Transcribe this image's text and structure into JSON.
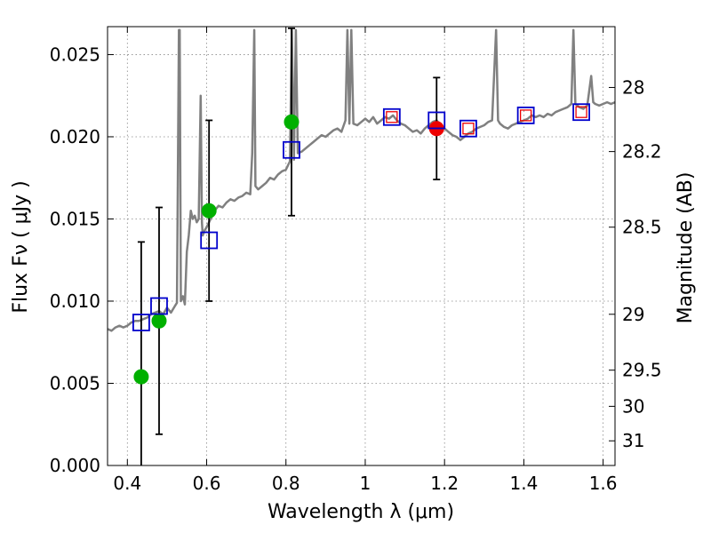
{
  "chart_data": {
    "type": "scatter",
    "title": "",
    "xlabel": "Wavelength  λ (μm)",
    "ylabel": "Flux  Fν  ( μJy )",
    "ylabel_right": "Magnitude (AB)",
    "xlim": [
      0.35,
      1.63
    ],
    "ylim": [
      0.0,
      0.0267
    ],
    "grid": true,
    "x_ticks": [
      0.4,
      0.6,
      0.8,
      1.0,
      1.2,
      1.4,
      1.6
    ],
    "x_tick_labels": [
      "0.4",
      "0.6",
      "0.8",
      "1",
      "1.2",
      "1.4",
      "1.6"
    ],
    "y_ticks": [
      0.0,
      0.005,
      0.01,
      0.015,
      0.02,
      0.025
    ],
    "y_tick_labels": [
      "0.000",
      "0.005",
      "0.010",
      "0.015",
      "0.020",
      "0.025"
    ],
    "right_ticks": [
      {
        "label": "28",
        "flux": 0.023
      },
      {
        "label": "28.2",
        "flux": 0.0191
      },
      {
        "label": "28.5",
        "flux": 0.0145
      },
      {
        "label": "29",
        "flux": 0.0092
      },
      {
        "label": "29.5",
        "flux": 0.0058
      },
      {
        "label": "30",
        "flux": 0.0036
      },
      {
        "label": "31",
        "flux": 0.0015
      }
    ],
    "colors": {
      "spectrum": "#808080",
      "observed": "#00b000",
      "observed_special": "#ee0000",
      "model": "#0000cc",
      "model_inner": "#ee0000",
      "errorbar": "#000000",
      "grid": "#888888"
    },
    "spectrum": [
      [
        0.35,
        0.0083
      ],
      [
        0.36,
        0.0082
      ],
      [
        0.37,
        0.0084
      ],
      [
        0.38,
        0.0085
      ],
      [
        0.39,
        0.0084
      ],
      [
        0.4,
        0.0085
      ],
      [
        0.41,
        0.0087
      ],
      [
        0.42,
        0.0088
      ],
      [
        0.43,
        0.0088
      ],
      [
        0.44,
        0.0089
      ],
      [
        0.45,
        0.009
      ],
      [
        0.46,
        0.0092
      ],
      [
        0.47,
        0.0093
      ],
      [
        0.48,
        0.0094
      ],
      [
        0.49,
        0.0092
      ],
      [
        0.5,
        0.0096
      ],
      [
        0.51,
        0.0093
      ],
      [
        0.52,
        0.0097
      ],
      [
        0.525,
        0.0099
      ],
      [
        0.53,
        0.0265
      ],
      [
        0.532,
        0.0265
      ],
      [
        0.535,
        0.01
      ],
      [
        0.54,
        0.0103
      ],
      [
        0.545,
        0.0098
      ],
      [
        0.55,
        0.013
      ],
      [
        0.555,
        0.014
      ],
      [
        0.56,
        0.0155
      ],
      [
        0.565,
        0.015
      ],
      [
        0.57,
        0.0152
      ],
      [
        0.575,
        0.0148
      ],
      [
        0.58,
        0.015
      ],
      [
        0.585,
        0.0225
      ],
      [
        0.588,
        0.0148
      ],
      [
        0.59,
        0.014
      ],
      [
        0.595,
        0.0143
      ],
      [
        0.6,
        0.0145
      ],
      [
        0.61,
        0.015
      ],
      [
        0.62,
        0.0155
      ],
      [
        0.63,
        0.0158
      ],
      [
        0.64,
        0.0157
      ],
      [
        0.65,
        0.016
      ],
      [
        0.66,
        0.0162
      ],
      [
        0.67,
        0.0161
      ],
      [
        0.68,
        0.0163
      ],
      [
        0.69,
        0.0164
      ],
      [
        0.7,
        0.0166
      ],
      [
        0.71,
        0.0165
      ],
      [
        0.715,
        0.019
      ],
      [
        0.72,
        0.0265
      ],
      [
        0.723,
        0.017
      ],
      [
        0.73,
        0.0168
      ],
      [
        0.74,
        0.017
      ],
      [
        0.75,
        0.0172
      ],
      [
        0.76,
        0.0175
      ],
      [
        0.77,
        0.0174
      ],
      [
        0.78,
        0.0177
      ],
      [
        0.79,
        0.0179
      ],
      [
        0.8,
        0.018
      ],
      [
        0.81,
        0.0185
      ],
      [
        0.815,
        0.0265
      ],
      [
        0.82,
        0.0186
      ],
      [
        0.825,
        0.0265
      ],
      [
        0.83,
        0.019
      ],
      [
        0.84,
        0.0191
      ],
      [
        0.85,
        0.0193
      ],
      [
        0.86,
        0.0195
      ],
      [
        0.87,
        0.0197
      ],
      [
        0.88,
        0.0199
      ],
      [
        0.89,
        0.0201
      ],
      [
        0.9,
        0.02
      ],
      [
        0.91,
        0.0202
      ],
      [
        0.92,
        0.0204
      ],
      [
        0.93,
        0.0205
      ],
      [
        0.94,
        0.0203
      ],
      [
        0.95,
        0.021
      ],
      [
        0.955,
        0.0265
      ],
      [
        0.96,
        0.0208
      ],
      [
        0.965,
        0.0265
      ],
      [
        0.97,
        0.0208
      ],
      [
        0.98,
        0.0207
      ],
      [
        0.99,
        0.0209
      ],
      [
        1.0,
        0.0211
      ],
      [
        1.01,
        0.0209
      ],
      [
        1.02,
        0.0212
      ],
      [
        1.03,
        0.0208
      ],
      [
        1.04,
        0.021
      ],
      [
        1.05,
        0.0212
      ],
      [
        1.06,
        0.0211
      ],
      [
        1.07,
        0.0213
      ],
      [
        1.08,
        0.021
      ],
      [
        1.09,
        0.0208
      ],
      [
        1.1,
        0.0207
      ],
      [
        1.11,
        0.0205
      ],
      [
        1.12,
        0.0203
      ],
      [
        1.13,
        0.0204
      ],
      [
        1.14,
        0.0202
      ],
      [
        1.15,
        0.0205
      ],
      [
        1.16,
        0.0207
      ],
      [
        1.17,
        0.0209
      ],
      [
        1.18,
        0.021
      ],
      [
        1.19,
        0.0207
      ],
      [
        1.2,
        0.0205
      ],
      [
        1.21,
        0.0203
      ],
      [
        1.22,
        0.0201
      ],
      [
        1.23,
        0.02
      ],
      [
        1.24,
        0.0198
      ],
      [
        1.25,
        0.02
      ],
      [
        1.26,
        0.0202
      ],
      [
        1.27,
        0.0203
      ],
      [
        1.28,
        0.0205
      ],
      [
        1.29,
        0.0206
      ],
      [
        1.3,
        0.0207
      ],
      [
        1.31,
        0.0209
      ],
      [
        1.32,
        0.021
      ],
      [
        1.33,
        0.0265
      ],
      [
        1.335,
        0.021
      ],
      [
        1.34,
        0.0208
      ],
      [
        1.35,
        0.0206
      ],
      [
        1.36,
        0.0205
      ],
      [
        1.37,
        0.0207
      ],
      [
        1.38,
        0.0208
      ],
      [
        1.39,
        0.0209
      ],
      [
        1.4,
        0.021
      ],
      [
        1.41,
        0.0211
      ],
      [
        1.42,
        0.0213
      ],
      [
        1.43,
        0.0212
      ],
      [
        1.44,
        0.0213
      ],
      [
        1.45,
        0.0212
      ],
      [
        1.46,
        0.0214
      ],
      [
        1.47,
        0.0213
      ],
      [
        1.48,
        0.0215
      ],
      [
        1.49,
        0.0216
      ],
      [
        1.5,
        0.0217
      ],
      [
        1.51,
        0.0218
      ],
      [
        1.52,
        0.022
      ],
      [
        1.525,
        0.0265
      ],
      [
        1.53,
        0.022
      ],
      [
        1.54,
        0.0218
      ],
      [
        1.55,
        0.0217
      ],
      [
        1.56,
        0.0219
      ],
      [
        1.57,
        0.0237
      ],
      [
        1.575,
        0.0221
      ],
      [
        1.58,
        0.022
      ],
      [
        1.59,
        0.0219
      ],
      [
        1.6,
        0.022
      ],
      [
        1.61,
        0.0221
      ],
      [
        1.62,
        0.022
      ],
      [
        1.63,
        0.0221
      ]
    ],
    "observed_points": [
      {
        "x": 0.435,
        "y": 0.0054,
        "yerr": 0.0082
      },
      {
        "x": 0.48,
        "y": 0.0088,
        "yerr": 0.0069
      },
      {
        "x": 0.606,
        "y": 0.0155,
        "yerr": 0.0055
      },
      {
        "x": 0.814,
        "y": 0.0209,
        "yerr": 0.0057
      },
      {
        "x": 1.18,
        "y": 0.0205,
        "yerr": 0.0031,
        "highlight": true
      }
    ],
    "model_points": [
      {
        "x": 0.435,
        "y": 0.0087
      },
      {
        "x": 0.48,
        "y": 0.0097
      },
      {
        "x": 0.606,
        "y": 0.0137
      },
      {
        "x": 0.814,
        "y": 0.0192
      },
      {
        "x": 1.067,
        "y": 0.0212,
        "inner": true
      },
      {
        "x": 1.18,
        "y": 0.021
      },
      {
        "x": 1.26,
        "y": 0.0205,
        "inner": true
      },
      {
        "x": 1.405,
        "y": 0.0213,
        "inner": true
      },
      {
        "x": 1.545,
        "y": 0.0215,
        "inner": true
      }
    ]
  }
}
